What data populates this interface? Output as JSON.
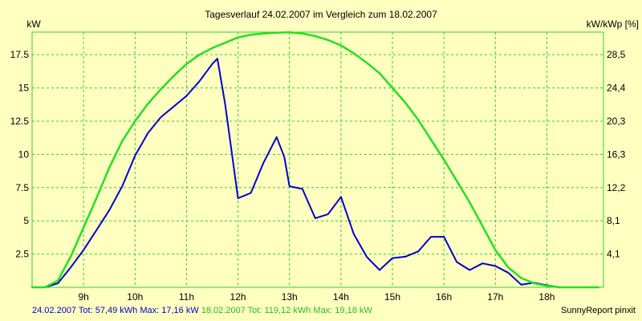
{
  "colors": {
    "background": "#ffffc0",
    "grid": "#2fd12f",
    "series_current": "#0000d0",
    "series_reference": "#22e022"
  },
  "chart_data": {
    "type": "line",
    "title": "Tagesverlauf 24.02.2007 im Vergleich zum 18.02.2007",
    "ylabel": "kW",
    "y2label": "kW/kWp [%]",
    "xlim": [
      8.0,
      19.1
    ],
    "ylim": [
      0,
      19.2
    ],
    "x_ticks": [
      {
        "value": 9,
        "label": "9h"
      },
      {
        "value": 10,
        "label": "10h"
      },
      {
        "value": 11,
        "label": "11h"
      },
      {
        "value": 12,
        "label": "12h"
      },
      {
        "value": 13,
        "label": "13h"
      },
      {
        "value": 14,
        "label": "14h"
      },
      {
        "value": 15,
        "label": "15h"
      },
      {
        "value": 16,
        "label": "16h"
      },
      {
        "value": 17,
        "label": "17h"
      },
      {
        "value": 18,
        "label": "18h"
      }
    ],
    "y_ticks": [
      {
        "value": 2.5,
        "label": "2.5"
      },
      {
        "value": 5,
        "label": "5"
      },
      {
        "value": 7.5,
        "label": "7.5"
      },
      {
        "value": 10,
        "label": "10"
      },
      {
        "value": 12.5,
        "label": "12.5"
      },
      {
        "value": 15,
        "label": "15"
      },
      {
        "value": 17.5,
        "label": "17.5"
      }
    ],
    "y2_ticks": [
      {
        "value": 2.5,
        "label": "4,1"
      },
      {
        "value": 5,
        "label": "8,1"
      },
      {
        "value": 7.5,
        "label": "12,2"
      },
      {
        "value": 10,
        "label": "16,3"
      },
      {
        "value": 12.5,
        "label": "20,3"
      },
      {
        "value": 15,
        "label": "24,4"
      },
      {
        "value": 17.5,
        "label": "28,5"
      }
    ],
    "grid": true,
    "series": [
      {
        "name": "24.02.2007",
        "color": "#0000d0",
        "x": [
          8.0,
          8.25,
          8.5,
          8.75,
          9.0,
          9.25,
          9.5,
          9.75,
          10.0,
          10.25,
          10.5,
          10.75,
          11.0,
          11.25,
          11.5,
          11.6,
          11.75,
          12.0,
          12.25,
          12.5,
          12.75,
          12.9,
          13.0,
          13.25,
          13.5,
          13.75,
          14.0,
          14.25,
          14.5,
          14.75,
          15.0,
          15.25,
          15.5,
          15.75,
          16.0,
          16.25,
          16.5,
          16.75,
          17.0,
          17.25,
          17.5,
          17.75,
          18.0,
          18.25,
          18.5,
          18.75
        ],
        "y": [
          0.0,
          0.0,
          0.3,
          1.5,
          2.8,
          4.3,
          5.8,
          7.6,
          9.9,
          11.6,
          12.8,
          13.6,
          14.4,
          15.5,
          16.8,
          17.2,
          13.8,
          6.7,
          7.1,
          9.4,
          11.3,
          9.8,
          7.6,
          7.4,
          5.2,
          5.5,
          6.8,
          4.0,
          2.3,
          1.3,
          2.2,
          2.3,
          2.7,
          3.8,
          3.8,
          1.9,
          1.3,
          1.8,
          1.6,
          1.1,
          0.2,
          0.35,
          0.15,
          0.0,
          0.0,
          0.0
        ]
      },
      {
        "name": "18.02.2007",
        "color": "#22e022",
        "x": [
          8.0,
          8.25,
          8.5,
          8.75,
          9.0,
          9.25,
          9.5,
          9.75,
          10.0,
          10.25,
          10.5,
          10.75,
          11.0,
          11.25,
          11.5,
          11.75,
          12.0,
          12.25,
          12.5,
          12.75,
          13.0,
          13.25,
          13.5,
          13.75,
          14.0,
          14.25,
          14.5,
          14.75,
          15.0,
          15.25,
          15.5,
          15.75,
          16.0,
          16.25,
          16.5,
          16.75,
          17.0,
          17.25,
          17.5,
          17.75,
          18.0,
          18.25,
          18.5,
          18.75,
          19.0
        ],
        "y": [
          0.0,
          0.0,
          0.5,
          2.3,
          4.5,
          6.7,
          9.0,
          11.0,
          12.5,
          13.8,
          14.9,
          15.9,
          16.8,
          17.5,
          18.0,
          18.4,
          18.8,
          19.0,
          19.1,
          19.15,
          19.18,
          19.1,
          18.9,
          18.6,
          18.2,
          17.6,
          16.9,
          16.1,
          15.0,
          13.9,
          12.6,
          11.1,
          9.6,
          8.0,
          6.4,
          4.6,
          2.8,
          1.5,
          0.7,
          0.3,
          0.1,
          0.0,
          0.0,
          0.0,
          0.0
        ]
      }
    ]
  },
  "footer": {
    "current_label": "24.02.2007 Tot: 57,49 kWh Max: 17,16 kW",
    "reference_label": "18.02.2007 Tot: 119,12 kWh Max: 19,18 kW",
    "branding": "SunnyReport pinxit"
  }
}
